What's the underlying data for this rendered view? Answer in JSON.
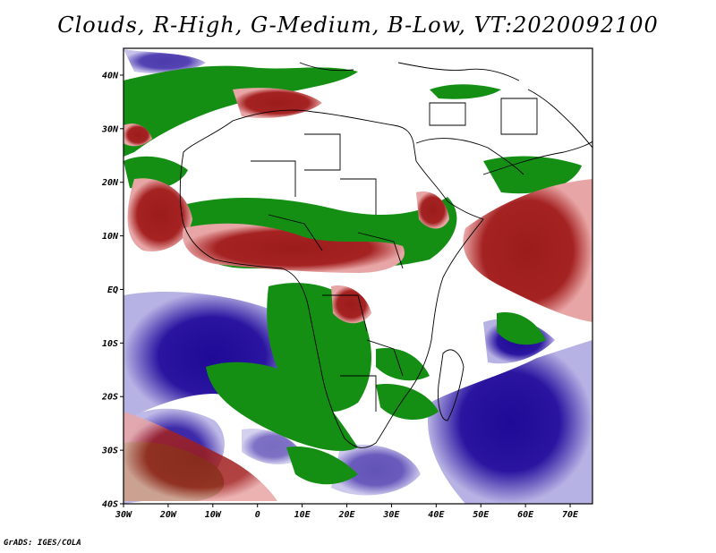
{
  "title": "Clouds, R-High, G-Medium, B-Low, VT:2020092100",
  "credit": "GrADS: IGES/COLA",
  "map": {
    "projection": "lat-lon",
    "lon_range": [
      -30,
      75
    ],
    "lat_range": [
      -40,
      45
    ],
    "y_ticks": [
      "40N",
      "30N",
      "20N",
      "10N",
      "EQ",
      "10S",
      "20S",
      "30S",
      "40S"
    ],
    "x_ticks": [
      "30W",
      "20W",
      "10W",
      "0",
      "10E",
      "20E",
      "30E",
      "40E",
      "50E",
      "60E",
      "70E"
    ],
    "legend_colors": {
      "high_cloud": "#9b1c1c",
      "medium_cloud": "#148f14",
      "low_cloud": "#1e0a96"
    }
  }
}
